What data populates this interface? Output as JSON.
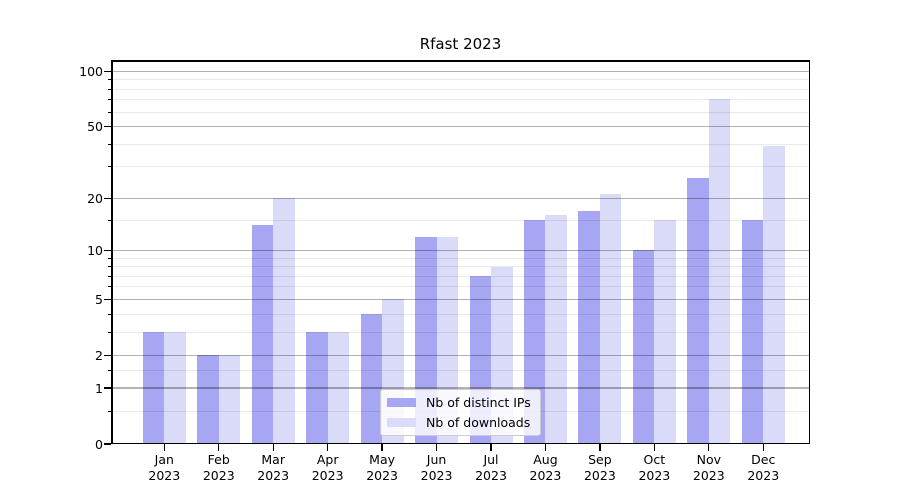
{
  "chart_data": {
    "type": "bar",
    "title": "Rfast 2023",
    "categories": [
      "Jan",
      "Feb",
      "Mar",
      "Apr",
      "May",
      "Jun",
      "Jul",
      "Aug",
      "Sep",
      "Oct",
      "Nov",
      "Dec"
    ],
    "x_tick_year": "2023",
    "series": [
      {
        "name": "Nb of distinct IPs",
        "color": "#a6a6f3",
        "values": [
          3,
          2,
          14,
          3,
          4,
          12,
          7,
          15,
          17,
          10,
          26,
          15
        ]
      },
      {
        "name": "Nb of downloads",
        "color": "#dadaf9",
        "values": [
          3,
          2,
          20,
          3,
          5,
          12,
          8,
          16,
          21,
          15,
          71,
          39
        ]
      }
    ],
    "y_axis": {
      "scale": "log10(1+x)",
      "major_ticks": [
        100,
        50,
        20,
        10,
        5,
        2,
        1,
        0
      ],
      "minor_ticks": [
        0.5,
        1.5,
        3,
        4,
        6,
        7,
        8,
        9,
        15,
        30,
        40,
        60,
        70,
        80,
        90
      ],
      "ylim": [
        0,
        112
      ]
    },
    "grid": true,
    "legend_position": "lower center",
    "colors": {
      "major_grid": "#b8b8b8",
      "minor_grid": "#ebebeb",
      "axis": "#000000",
      "text": "#000000",
      "legend_border": "#cccccc",
      "background": "#ffffff"
    }
  }
}
